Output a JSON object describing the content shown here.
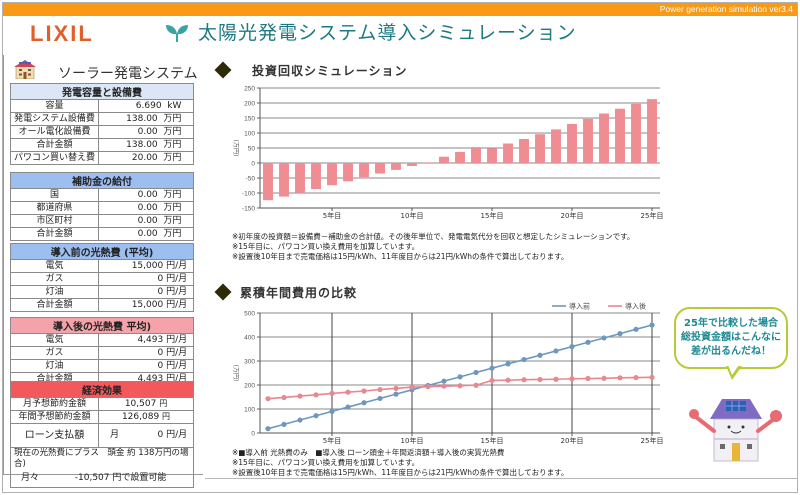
{
  "header": {
    "version_text": "Power generation simulation ver3.4",
    "logo": "LIXIL",
    "title": "太陽光発電システム導入シミュレーション",
    "brand_color": "#e0602a",
    "bar_color": "#f89a16"
  },
  "sidebar": {
    "title": "ソーラー発電システム",
    "capacity_section": {
      "heading": "発電容量と設備費",
      "rows": [
        {
          "label": "容量",
          "value": "6.690",
          "unit": "kW"
        },
        {
          "label": "発電システム設備費",
          "value": "138.00",
          "unit": "万円"
        },
        {
          "label": "オール電化設備費",
          "value": "0.00",
          "unit": "万円"
        },
        {
          "label": "合計金額",
          "value": "138.00",
          "unit": "万円"
        },
        {
          "label": "パワコン買い替え費",
          "value": "20.00",
          "unit": "万円"
        }
      ]
    },
    "subsidy_section": {
      "heading": "補助金の給付",
      "rows": [
        {
          "label": "国",
          "value": "0.00",
          "unit": "万円"
        },
        {
          "label": "都道府県",
          "value": "0.00",
          "unit": "万円"
        },
        {
          "label": "市区町村",
          "value": "0.00",
          "unit": "万円"
        },
        {
          "label": "合計金額",
          "value": "0.00",
          "unit": "万円"
        }
      ]
    },
    "before_section": {
      "heading": "導入前の光熱費 (平均)",
      "rows": [
        {
          "label": "電気",
          "value": "15,000",
          "unit": "円/月"
        },
        {
          "label": "ガス",
          "value": "0",
          "unit": "円/月"
        },
        {
          "label": "灯油",
          "value": "0",
          "unit": "円/月"
        },
        {
          "label": "合計金額",
          "value": "15,000",
          "unit": "円/月"
        }
      ]
    },
    "after_section": {
      "heading": "導入後の光熱費 平均)",
      "rows": [
        {
          "label": "電気",
          "value": "4,493",
          "unit": "円/月"
        },
        {
          "label": "ガス",
          "value": "0",
          "unit": "円/月"
        },
        {
          "label": "灯油",
          "value": "0",
          "unit": "円/月"
        },
        {
          "label": "合計金額",
          "value": "4,493",
          "unit": "円/月"
        }
      ]
    },
    "effect_section": {
      "heading": "経済効果",
      "monthly_label": "月予想節約金額",
      "monthly_value": "10,507",
      "monthly_unit": "円",
      "annual_label": "年間予想節約金額",
      "annual_value": "126,089",
      "annual_unit": "円",
      "loan_label": "ローン支払額",
      "loan_period": "月",
      "loan_value": "0",
      "loan_unit": "円/月",
      "note_line1": "現在の光熱費にプラス　頭金 約 138万円の場合)",
      "note_line2_prefix": "月々",
      "note_line2_value": "-10,507 円で設置可能"
    }
  },
  "section1": {
    "title": "投資回収シミュレーション",
    "notes": [
      "※初年度の投資額＝設備費－補助金の合計値。その後年単位で、発電電気代分を回収と想定したシミュレーションです。",
      "※15年目に、パワコン買い換え費用を加算しています。",
      "※設置後10年目まで売電価格は15円/kWh、11年度目からは21円/kWhの条件で算出しております。"
    ]
  },
  "section2": {
    "title": "累積年間費用の比較",
    "notes": [
      "※■導入前 光熱費のみ　■導入後 ローン頭金＋年間返済額＋導入後の実質光熱費",
      "※15年目に、パワコン買い換え費用を加算しています。",
      "※設置後10年目まで売電価格は15円/kWh、11年度目からは21円/kWhの条件で算出しております。"
    ]
  },
  "mascot": {
    "bubble_lines": [
      "25年で比較した場合",
      "総投資金額はこんなに",
      "差が出るんだね！"
    ]
  },
  "chart_data": [
    {
      "type": "bar",
      "title": "投資回収シミュレーション",
      "ylabel": "(万円)",
      "xlabel": "",
      "ylim": [
        -150,
        250
      ],
      "yticks": [
        -150,
        -100,
        -50,
        0,
        50,
        100,
        150,
        200,
        250
      ],
      "x": [
        1,
        2,
        3,
        4,
        5,
        6,
        7,
        8,
        9,
        10,
        11,
        12,
        13,
        14,
        15,
        16,
        17,
        18,
        19,
        20,
        21,
        22,
        23,
        24,
        25
      ],
      "xtick_labels": [
        {
          "x": 5,
          "label": "5年目"
        },
        {
          "x": 10,
          "label": "10年目"
        },
        {
          "x": 15,
          "label": "15年目"
        },
        {
          "x": 20,
          "label": "20年目"
        },
        {
          "x": 25,
          "label": "25年目"
        }
      ],
      "values": [
        -124,
        -112,
        -100,
        -87,
        -74,
        -61,
        -47,
        -35,
        -23,
        -10,
        2,
        21,
        37,
        53,
        49,
        65,
        80,
        96,
        112,
        130,
        147,
        165,
        181,
        197,
        213
      ],
      "color": "#f08d93",
      "grid": true
    },
    {
      "type": "line",
      "title": "累積年間費用の比較",
      "ylabel": "(万円)",
      "xlabel": "",
      "ylim": [
        0,
        500
      ],
      "yticks": [
        0,
        100,
        200,
        300,
        400,
        500
      ],
      "x": [
        1,
        2,
        3,
        4,
        5,
        6,
        7,
        8,
        9,
        10,
        11,
        12,
        13,
        14,
        15,
        16,
        17,
        18,
        19,
        20,
        21,
        22,
        23,
        24,
        25
      ],
      "xtick_labels": [
        {
          "x": 5,
          "label": "5年目"
        },
        {
          "x": 10,
          "label": "10年目"
        },
        {
          "x": 15,
          "label": "15年目"
        },
        {
          "x": 20,
          "label": "20年目"
        },
        {
          "x": 25,
          "label": "25年目"
        }
      ],
      "legend_position": "top-right",
      "grid": true,
      "series": [
        {
          "name": "導入前",
          "color": "#6e97c0",
          "values": [
            18,
            36,
            54,
            72,
            90,
            108,
            126,
            144,
            162,
            180,
            198,
            216,
            234,
            252,
            270,
            288,
            306,
            324,
            342,
            360,
            378,
            396,
            414,
            432,
            450
          ]
        },
        {
          "name": "導入後",
          "color": "#ea8690",
          "values": [
            143,
            148,
            154,
            159,
            165,
            170,
            175,
            181,
            186,
            191,
            193,
            195,
            197,
            199,
            219,
            220,
            222,
            223,
            224,
            226,
            227,
            228,
            230,
            231,
            232
          ]
        }
      ]
    }
  ]
}
